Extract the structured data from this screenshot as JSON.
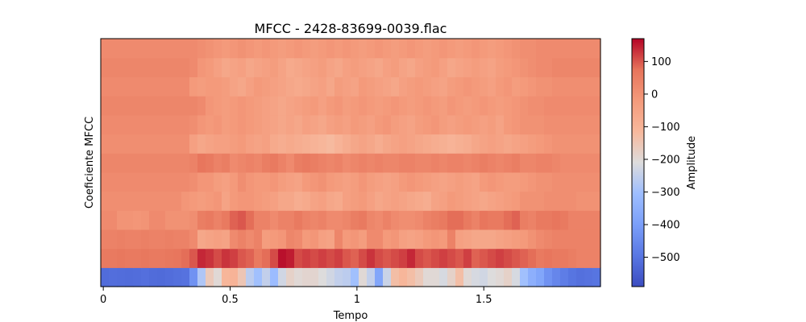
{
  "chart_data": {
    "type": "heatmap",
    "title": "MFCC - 2428-83699-0039.flac",
    "xlabel": "Tempo",
    "ylabel": "Coeficiente MFCC",
    "x_ticks": [
      {
        "value": 0,
        "label": "0"
      },
      {
        "value": 0.5,
        "label": "0.5"
      },
      {
        "value": 1,
        "label": "1"
      },
      {
        "value": 1.5,
        "label": "1.5"
      }
    ],
    "xlim": [
      -0.01,
      1.96
    ],
    "n_coefficients": 13,
    "n_frames": 62,
    "frame_step": 0.032,
    "colormap": "coolwarm",
    "colorbar": {
      "label": "Amplitude",
      "range": [
        -590,
        170
      ],
      "ticks": [
        {
          "value": 100,
          "label": "100"
        },
        {
          "value": 0,
          "label": "0"
        },
        {
          "value": -100,
          "label": "−100"
        },
        {
          "value": -200,
          "label": "−200"
        },
        {
          "value": -300,
          "label": "−300"
        },
        {
          "value": -400,
          "label": "−400"
        },
        {
          "value": -500,
          "label": "−500"
        }
      ]
    },
    "coefficients": [
      {
        "index": 0,
        "values": [
          -520,
          -515,
          -518,
          -520,
          -516,
          -512,
          -520,
          -522,
          -518,
          -510,
          -505,
          -430,
          -280,
          -160,
          -200,
          -110,
          -100,
          -150,
          -260,
          -300,
          -250,
          -310,
          -230,
          -180,
          -200,
          -190,
          -190,
          -210,
          -230,
          -250,
          -260,
          -300,
          -200,
          -250,
          -380,
          -240,
          -130,
          -110,
          -130,
          -160,
          -200,
          -200,
          -220,
          -180,
          -130,
          -200,
          -220,
          -230,
          -210,
          -200,
          -180,
          -220,
          -300,
          -350,
          -380,
          -430,
          -460,
          -480,
          -500,
          -510,
          -505,
          -500
        ]
      },
      {
        "index": 1,
        "values": [
          60,
          60,
          65,
          60,
          60,
          65,
          60,
          60,
          65,
          70,
          80,
          100,
          140,
          130,
          110,
          130,
          120,
          100,
          90,
          60,
          80,
          110,
          160,
          150,
          110,
          120,
          110,
          120,
          110,
          120,
          100,
          90,
          110,
          130,
          110,
          100,
          110,
          120,
          140,
          110,
          100,
          110,
          120,
          110,
          100,
          120,
          90,
          100,
          110,
          120,
          110,
          100,
          90,
          80,
          60,
          70,
          60,
          60,
          50,
          40,
          40,
          40
        ]
      },
      {
        "index": 2,
        "values": [
          40,
          40,
          45,
          40,
          40,
          45,
          40,
          40,
          45,
          40,
          40,
          20,
          -60,
          -50,
          -40,
          -50,
          20,
          40,
          20,
          40,
          -30,
          -20,
          -10,
          30,
          20,
          -20,
          -10,
          -40,
          -50,
          30,
          -20,
          -10,
          -30,
          20,
          20,
          -20,
          -10,
          -40,
          -50,
          -40,
          -20,
          -10,
          -20,
          40,
          -40,
          -50,
          -60,
          -60,
          -60,
          -50,
          -40,
          -30,
          -20,
          0,
          20,
          30,
          40,
          40,
          40,
          40,
          40,
          40
        ]
      },
      {
        "index": 3,
        "values": [
          20,
          20,
          -5,
          -5,
          -10,
          -5,
          20,
          20,
          0,
          0,
          0,
          10,
          50,
          60,
          40,
          60,
          90,
          100,
          80,
          40,
          40,
          20,
          40,
          40,
          60,
          40,
          30,
          40,
          20,
          20,
          30,
          50,
          60,
          30,
          20,
          40,
          20,
          10,
          10,
          20,
          40,
          50,
          60,
          80,
          80,
          60,
          40,
          70,
          60,
          60,
          80,
          90,
          50,
          40,
          60,
          60,
          70,
          60,
          40,
          40,
          40,
          40
        ]
      },
      {
        "index": 4,
        "values": [
          10,
          10,
          10,
          10,
          10,
          10,
          10,
          10,
          10,
          10,
          -10,
          -20,
          -30,
          -20,
          -10,
          -50,
          -20,
          -10,
          -10,
          -20,
          -30,
          -40,
          -60,
          -60,
          -80,
          -70,
          -50,
          -40,
          -60,
          -70,
          -40,
          -30,
          -20,
          -40,
          -60,
          -50,
          -40,
          -50,
          -60,
          -70,
          -80,
          -50,
          -40,
          -20,
          -30,
          -40,
          -50,
          -60,
          -50,
          -40,
          -30,
          -20,
          0,
          0,
          0,
          10,
          10,
          10,
          10,
          0,
          0,
          0
        ]
      },
      {
        "index": 5,
        "values": [
          20,
          20,
          20,
          20,
          20,
          20,
          20,
          20,
          20,
          20,
          20,
          10,
          -10,
          -10,
          -30,
          -40,
          -20,
          10,
          -10,
          -20,
          -20,
          -10,
          -30,
          -40,
          -50,
          -20,
          -10,
          0,
          -20,
          -30,
          -40,
          -30,
          -10,
          -30,
          -40,
          -50,
          -40,
          -20,
          -10,
          -20,
          -30,
          -40,
          -50,
          -40,
          -30,
          -40,
          -50,
          -20,
          -10,
          -20,
          -30,
          -30,
          -20,
          -10,
          0,
          0,
          10,
          10,
          10,
          10,
          10,
          10
        ]
      },
      {
        "index": 6,
        "values": [
          30,
          30,
          30,
          30,
          30,
          30,
          30,
          30,
          30,
          30,
          30,
          40,
          70,
          60,
          40,
          50,
          20,
          30,
          40,
          30,
          50,
          60,
          40,
          20,
          50,
          60,
          50,
          40,
          30,
          40,
          20,
          30,
          40,
          30,
          40,
          30,
          30,
          40,
          40,
          30,
          30,
          40,
          30,
          40,
          40,
          30,
          40,
          50,
          40,
          30,
          40,
          50,
          30,
          30,
          40,
          40,
          30,
          20,
          20,
          20,
          20,
          20
        ]
      },
      {
        "index": 7,
        "values": [
          10,
          10,
          10,
          10,
          10,
          10,
          10,
          10,
          10,
          10,
          10,
          -40,
          -60,
          -50,
          -40,
          -40,
          -30,
          -20,
          -40,
          -50,
          -40,
          -70,
          -80,
          -70,
          -80,
          -90,
          -100,
          -110,
          -120,
          -100,
          -80,
          -60,
          -50,
          -60,
          -80,
          -60,
          -50,
          -40,
          -50,
          -60,
          -70,
          -80,
          -90,
          -100,
          -90,
          -80,
          -60,
          -50,
          -40,
          -50,
          -60,
          -50,
          -40,
          -30,
          -20,
          -10,
          0,
          0,
          0,
          0,
          0,
          0
        ]
      },
      {
        "index": 8,
        "values": [
          20,
          20,
          20,
          20,
          20,
          20,
          20,
          20,
          20,
          20,
          20,
          10,
          -10,
          -20,
          -10,
          -30,
          -20,
          -10,
          -20,
          -30,
          -40,
          -50,
          -60,
          -50,
          -60,
          -40,
          -50,
          -60,
          -40,
          -30,
          -40,
          -20,
          -30,
          -40,
          -20,
          -10,
          -30,
          -40,
          -50,
          -30,
          -20,
          -10,
          -30,
          -40,
          -30,
          -20,
          -30,
          -40,
          -30,
          -50,
          -20,
          -10,
          0,
          0,
          0,
          10,
          10,
          10,
          10,
          10,
          10,
          10
        ]
      },
      {
        "index": 9,
        "values": [
          30,
          30,
          30,
          30,
          30,
          30,
          30,
          30,
          30,
          30,
          30,
          30,
          20,
          -10,
          -20,
          -30,
          -20,
          -10,
          -20,
          -30,
          -40,
          -50,
          -60,
          -50,
          -40,
          -30,
          -20,
          -40,
          -20,
          -10,
          -30,
          -20,
          -10,
          -20,
          -30,
          -20,
          -10,
          -20,
          -30,
          -20,
          -10,
          -20,
          -30,
          -10,
          -20,
          -30,
          -20,
          -10,
          -20,
          -30,
          -20,
          -10,
          0,
          10,
          10,
          20,
          20,
          20,
          20,
          20,
          20,
          20
        ]
      },
      {
        "index": 10,
        "values": [
          20,
          20,
          20,
          20,
          20,
          20,
          20,
          20,
          20,
          20,
          20,
          -20,
          -30,
          -20,
          -20,
          -30,
          -50,
          -60,
          -40,
          -20,
          -30,
          -40,
          -50,
          -60,
          -70,
          -60,
          -50,
          -40,
          -60,
          -30,
          -40,
          -50,
          -20,
          -30,
          -40,
          -50,
          -60,
          -40,
          -30,
          -20,
          -30,
          -40,
          -50,
          -30,
          -20,
          -10,
          -20,
          -30,
          -40,
          -20,
          -10,
          -30,
          -20,
          -10,
          0,
          0,
          10,
          10,
          10,
          10,
          10,
          10
        ]
      },
      {
        "index": 11,
        "values": [
          30,
          30,
          30,
          30,
          30,
          30,
          30,
          30,
          30,
          30,
          30,
          20,
          -10,
          -20,
          -40,
          -60,
          -50,
          -40,
          -60,
          -50,
          -40,
          -30,
          -50,
          -70,
          -60,
          -50,
          -40,
          -30,
          -50,
          -60,
          -40,
          -30,
          -40,
          -50,
          -60,
          -40,
          -30,
          -50,
          -60,
          -40,
          -30,
          -20,
          -40,
          -60,
          -50,
          -40,
          -30,
          -40,
          -50,
          -30,
          -20,
          -10,
          0,
          10,
          20,
          20,
          30,
          30,
          30,
          30,
          30,
          30
        ]
      },
      {
        "index": 12,
        "values": [
          20,
          20,
          20,
          20,
          20,
          20,
          20,
          20,
          20,
          20,
          20,
          20,
          10,
          0,
          -10,
          -20,
          -10,
          0,
          -10,
          -20,
          -10,
          -20,
          -30,
          -20,
          -10,
          -20,
          -30,
          -20,
          -10,
          -20,
          -10,
          -20,
          -30,
          -20,
          -10,
          -20,
          -30,
          -20,
          -10,
          -20,
          -30,
          -20,
          -10,
          -20,
          -30,
          -20,
          -10,
          -20,
          -30,
          -20,
          -10,
          0,
          10,
          10,
          20,
          20,
          20,
          20,
          20,
          20,
          20,
          20
        ]
      }
    ]
  }
}
